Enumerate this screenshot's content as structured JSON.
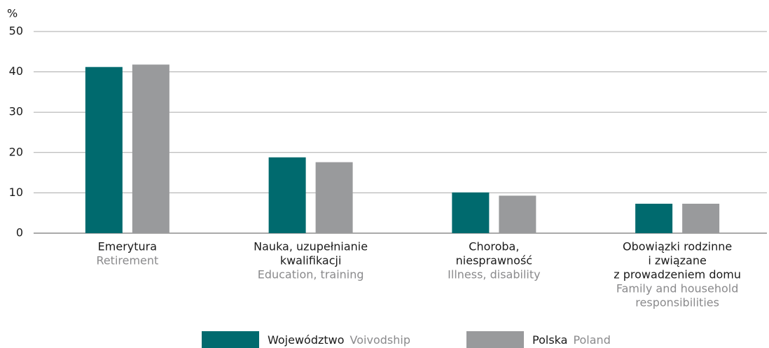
{
  "chart_data": {
    "type": "bar",
    "y_unit": "%",
    "categories": [
      [
        "Emerytura"
      ],
      [
        "Nauka, uzupełnianie",
        "kwalifikacji"
      ],
      [
        "Choroba,",
        "niesprawność"
      ],
      [
        "Obowiązki rodzinne",
        "i związane",
        "z prowadzeniem domu"
      ]
    ],
    "category_translations": [
      [
        "Retirement"
      ],
      [
        "Education, training"
      ],
      [
        "Illness, disability"
      ],
      [
        "Family and household",
        "responsibilities"
      ]
    ],
    "series": [
      {
        "name": "Województwo",
        "name_translation": "Voivodship",
        "color": "#006a6e",
        "values": [
          41.2,
          18.8,
          10.1,
          7.3
        ]
      },
      {
        "name": "Polska",
        "name_translation": "Poland",
        "color": "#999a9c",
        "values": [
          41.8,
          17.6,
          9.3,
          7.3
        ]
      }
    ],
    "ylim": [
      0,
      50
    ],
    "yticks": [
      0,
      10,
      20,
      30,
      40,
      50
    ],
    "grid": true
  }
}
